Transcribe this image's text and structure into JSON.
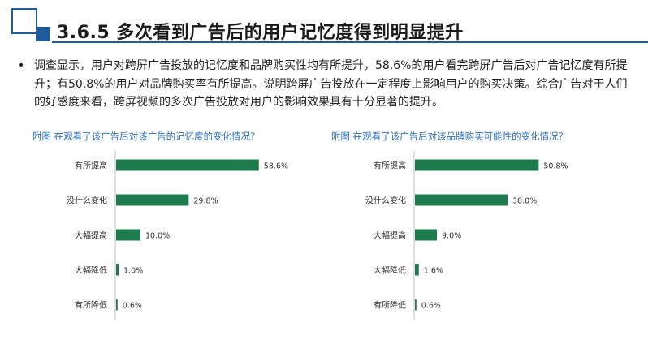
{
  "header": {
    "title": "3.6.5  多次看到广告后的用户记忆度得到明显提升"
  },
  "body": {
    "bullet_symbol": "•",
    "bullet_text": "调查显示，用户对跨屏广告投放的记忆度和品牌购买性均有所提升，58.6%的用户看完跨屏广告后对广告记忆度有所提升；有50.8%的用户对品牌购买率有所提高。说明跨屏广告投放在一定程度上影响用户的购买决策。综合广告对于人们的好感度来看，跨屏视频的多次广告投放对用户的影响效果具有十分显著的提升。"
  },
  "colors": {
    "accent": "#1f5c99",
    "bar": "#1e7b4b",
    "chart_title": "#2a6ebb"
  },
  "chart_data": [
    {
      "type": "bar",
      "orientation": "horizontal",
      "title": "附图 在观看了该广告后对该广告的记忆度的变化情况？",
      "categories": [
        "有所提高",
        "没什么变化",
        "大幅提高",
        "大幅降低",
        "有所降低"
      ],
      "values": [
        58.6,
        29.8,
        10.0,
        1.0,
        0.6
      ],
      "value_labels": [
        "58.6%",
        "29.8%",
        "10.0%",
        "1.0%",
        "0.6%"
      ],
      "xlim": [
        0,
        100
      ],
      "grid": false,
      "legend": "none"
    },
    {
      "type": "bar",
      "orientation": "horizontal",
      "title": "附图 在观看了该广告后对该品牌购买可能性的变化情况？",
      "categories": [
        "有所提高",
        "没什么变化",
        "大幅提高",
        "大幅降低",
        "有所降低"
      ],
      "values": [
        50.8,
        38.0,
        9.0,
        1.6,
        0.6
      ],
      "value_labels": [
        "50.8%",
        "38.0%",
        "9.0%",
        "1.6%",
        "0.6%"
      ],
      "xlim": [
        0,
        100
      ],
      "grid": false,
      "legend": "none"
    }
  ]
}
